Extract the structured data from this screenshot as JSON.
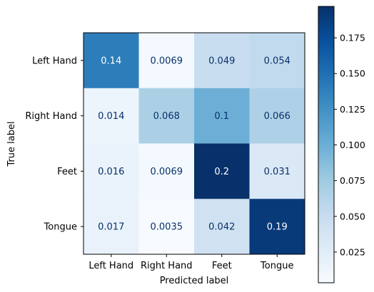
{
  "chart_data": {
    "type": "heatmap",
    "title": "",
    "xlabel": "Predicted label",
    "ylabel": "True label",
    "x_categories": [
      "Left Hand",
      "Right Hand",
      "Feet",
      "Tongue"
    ],
    "y_categories": [
      "Left Hand",
      "Right Hand",
      "Feet",
      "Tongue"
    ],
    "values": [
      [
        0.14,
        0.0069,
        0.049,
        0.054
      ],
      [
        0.014,
        0.068,
        0.1,
        0.066
      ],
      [
        0.016,
        0.0069,
        0.2,
        0.031
      ],
      [
        0.017,
        0.0035,
        0.042,
        0.19
      ]
    ],
    "cell_labels": [
      [
        "0.14",
        "0.0069",
        "0.049",
        "0.054"
      ],
      [
        "0.014",
        "0.068",
        "0.1",
        "0.066"
      ],
      [
        "0.016",
        "0.0069",
        "0.2",
        "0.031"
      ],
      [
        "0.017",
        "0.0035",
        "0.042",
        "0.19"
      ]
    ],
    "colormap": "Blues",
    "vmin": 0.0035,
    "vmax": 0.197,
    "colorbar_ticks": [
      0.025,
      0.05,
      0.075,
      0.1,
      0.125,
      0.15,
      0.175
    ],
    "colorbar_tick_labels": [
      "0.025",
      "0.050",
      "0.075",
      "0.100",
      "0.125",
      "0.150",
      "0.175"
    ],
    "colors": {
      "light_text": "#ffffff",
      "dark_text": "#08306b",
      "axis": "#000000"
    }
  }
}
